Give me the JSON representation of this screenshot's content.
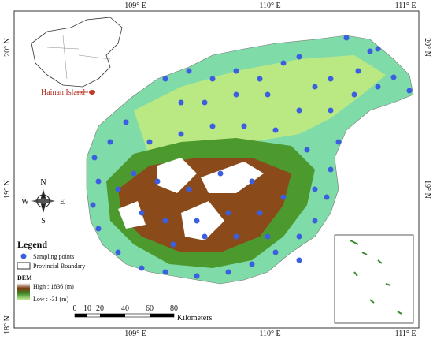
{
  "coordinates": {
    "top": [
      "109° E",
      "110° E",
      "111° E"
    ],
    "bottom": [
      "109° E",
      "110° E",
      "111° E"
    ],
    "left": [
      "20° N",
      "19° N",
      "18° N"
    ],
    "right": [
      "20° N",
      "19° N"
    ]
  },
  "inset_label": "Hainan Island",
  "compass": {
    "north": "N",
    "south": "S",
    "west": "W",
    "east": "E"
  },
  "legend": {
    "title": "Legend",
    "items": [
      "Sampling points",
      "Provincial Boundary"
    ],
    "dem_title": "DEM",
    "dem_high": "High : 1836 (m)",
    "dem_low": "Low : -31 (m)"
  },
  "scale_bar": {
    "ticks": [
      "0",
      "10",
      "20",
      "40",
      "60",
      "80"
    ],
    "unit": "Kilometers"
  }
}
